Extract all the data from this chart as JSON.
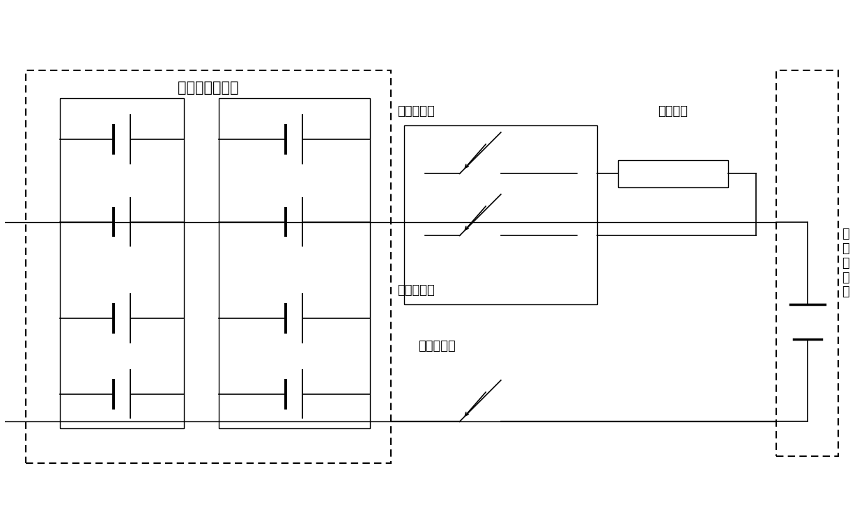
{
  "bg_color": "#ffffff",
  "line_color": "#000000",
  "fig_width": 12.4,
  "fig_height": 7.38,
  "dpi": 100,
  "title_battery": "电动车动力电池",
  "label_pre_relay": "预充继电器",
  "label_pre_charge": "预充电组",
  "label_pos_relay": "正极继电器",
  "label_neg_relay": "负极继电器",
  "label_motor_ctrl": "电\n机\n控\n制\n器",
  "font_size_labels": 13,
  "font_size_title": 15
}
